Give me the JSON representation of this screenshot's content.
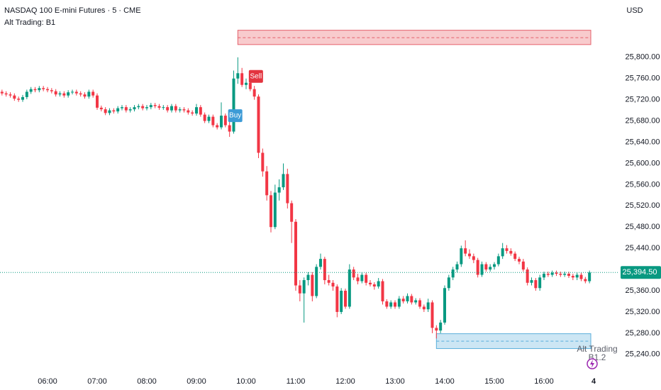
{
  "chart_data": {
    "type": "candlestick",
    "title": "NASDAQ 100 E-mini Futures · 5 · CME",
    "subtitle": "Alt Trading: B1",
    "currency": "USD",
    "up_color": "#089981",
    "down_color": "#f23645",
    "ylim": [
      25213,
      25908
    ],
    "yticks": [
      {
        "value": 25240,
        "label": "25,240.00"
      },
      {
        "value": 25280,
        "label": "25,280.00"
      },
      {
        "value": 25320,
        "label": "25,320.00"
      },
      {
        "value": 25360,
        "label": "25,360.00"
      },
      {
        "value": 25400,
        "label": "25,400.00"
      },
      {
        "value": 25440,
        "label": "25,440.00"
      },
      {
        "value": 25480,
        "label": "25,480.00"
      },
      {
        "value": 25520,
        "label": "25,520.00"
      },
      {
        "value": 25560,
        "label": "25,560.00"
      },
      {
        "value": 25600,
        "label": "25,600.00"
      },
      {
        "value": 25640,
        "label": "25,640.00"
      },
      {
        "value": 25680,
        "label": "25,680.00"
      },
      {
        "value": 25720,
        "label": "25,720.00"
      },
      {
        "value": 25760,
        "label": "25,760.00"
      },
      {
        "value": 25800,
        "label": "25,800.00"
      }
    ],
    "xticks": [
      "06:00",
      "07:00",
      "08:00",
      "09:00",
      "10:00",
      "11:00",
      "12:00",
      "13:00",
      "14:00",
      "15:00",
      "16:00",
      {
        "value": "17:00",
        "label": "4"
      }
    ],
    "last_price": {
      "value": 25394.5,
      "label": "25,394.50"
    },
    "x": [
      "05:05",
      "05:10",
      "05:15",
      "05:20",
      "05:25",
      "05:30",
      "05:35",
      "05:40",
      "05:45",
      "05:50",
      "05:55",
      "06:00",
      "06:05",
      "06:10",
      "06:15",
      "06:20",
      "06:25",
      "06:30",
      "06:35",
      "06:40",
      "06:45",
      "06:50",
      "06:55",
      "07:00",
      "07:05",
      "07:10",
      "07:15",
      "07:20",
      "07:25",
      "07:30",
      "07:35",
      "07:40",
      "07:45",
      "07:50",
      "07:55",
      "08:00",
      "08:05",
      "08:10",
      "08:15",
      "08:20",
      "08:25",
      "08:30",
      "08:35",
      "08:40",
      "08:45",
      "08:50",
      "08:55",
      "09:00",
      "09:05",
      "09:10",
      "09:15",
      "09:20",
      "09:25",
      "09:30",
      "09:35",
      "09:40",
      "09:45",
      "09:50",
      "09:55",
      "10:00",
      "10:05",
      "10:10",
      "10:15",
      "10:20",
      "10:25",
      "10:30",
      "10:35",
      "10:40",
      "10:45",
      "10:50",
      "10:55",
      "11:00",
      "11:05",
      "11:10",
      "11:15",
      "11:20",
      "11:25",
      "11:30",
      "11:35",
      "11:40",
      "11:45",
      "11:50",
      "11:55",
      "12:00",
      "12:05",
      "12:10",
      "12:15",
      "12:20",
      "12:25",
      "12:30",
      "12:35",
      "12:40",
      "12:45",
      "12:50",
      "12:55",
      "13:00",
      "13:05",
      "13:10",
      "13:15",
      "13:20",
      "13:25",
      "13:30",
      "13:35",
      "13:40",
      "13:45",
      "13:50",
      "13:55",
      "14:00",
      "14:05",
      "14:10",
      "14:15",
      "14:20",
      "14:25",
      "14:30",
      "14:35",
      "14:40",
      "14:45",
      "14:50",
      "14:55",
      "15:00",
      "15:05",
      "15:10",
      "15:15",
      "15:20",
      "15:25",
      "15:30",
      "15:35",
      "15:40",
      "15:45",
      "15:50",
      "15:55",
      "16:00",
      "16:05",
      "16:10",
      "16:15",
      "16:20",
      "16:25",
      "16:30",
      "16:35",
      "16:40",
      "16:45",
      "16:50",
      "16:55"
    ],
    "ohlc": [
      [
        25735,
        25739,
        25728,
        25732
      ],
      [
        25732,
        25736,
        25726,
        25730
      ],
      [
        25730,
        25734,
        25724,
        25728
      ],
      [
        25728,
        25732,
        25718,
        25722
      ],
      [
        25722,
        25726,
        25716,
        25720
      ],
      [
        25720,
        25729,
        25716,
        25725
      ],
      [
        25725,
        25739,
        25721,
        25735
      ],
      [
        25735,
        25744,
        25731,
        25740
      ],
      [
        25740,
        25744,
        25734,
        25738
      ],
      [
        25738,
        25746,
        25734,
        25742
      ],
      [
        25742,
        25746,
        25736,
        25740
      ],
      [
        25740,
        25744,
        25734,
        25738
      ],
      [
        25738,
        25742,
        25732,
        25736
      ],
      [
        25736,
        25740,
        25726,
        25730
      ],
      [
        25730,
        25736,
        25726,
        25732
      ],
      [
        25732,
        25736,
        25724,
        25728
      ],
      [
        25728,
        25738,
        25724,
        25734
      ],
      [
        25734,
        25739,
        25730,
        25735
      ],
      [
        25735,
        25739,
        25728,
        25732
      ],
      [
        25732,
        25736,
        25726,
        25730
      ],
      [
        25730,
        25734,
        25722,
        25726
      ],
      [
        25726,
        25739,
        25722,
        25735
      ],
      [
        25735,
        25739,
        25724,
        25728
      ],
      [
        25728,
        25732,
        25701,
        25705
      ],
      [
        25705,
        25709,
        25698,
        25702
      ],
      [
        25702,
        25706,
        25691,
        25695
      ],
      [
        25695,
        25704,
        25691,
        25700
      ],
      [
        25700,
        25704,
        25694,
        25698
      ],
      [
        25698,
        25708,
        25694,
        25704
      ],
      [
        25704,
        25710,
        25700,
        25706
      ],
      [
        25706,
        25710,
        25696,
        25700
      ],
      [
        25700,
        25706,
        25696,
        25702
      ],
      [
        25702,
        25710,
        25698,
        25706
      ],
      [
        25706,
        25712,
        25702,
        25708
      ],
      [
        25708,
        25712,
        25700,
        25704
      ],
      [
        25704,
        25710,
        25700,
        25706
      ],
      [
        25706,
        25714,
        25702,
        25710
      ],
      [
        25710,
        25714,
        25704,
        25708
      ],
      [
        25708,
        25712,
        25701,
        25705
      ],
      [
        25705,
        25710,
        25701,
        25706
      ],
      [
        25706,
        25710,
        25696,
        25700
      ],
      [
        25700,
        25712,
        25696,
        25708
      ],
      [
        25708,
        25712,
        25696,
        25700
      ],
      [
        25700,
        25706,
        25696,
        25702
      ],
      [
        25702,
        25706,
        25696,
        25700
      ],
      [
        25700,
        25704,
        25692,
        25696
      ],
      [
        25696,
        25700,
        25690,
        25694
      ],
      [
        25694,
        25712,
        25690,
        25706
      ],
      [
        25706,
        25710,
        25688,
        25692
      ],
      [
        25692,
        25696,
        25676,
        25680
      ],
      [
        25680,
        25692,
        25676,
        25688
      ],
      [
        25688,
        25692,
        25668,
        25672
      ],
      [
        25672,
        25676,
        25664,
        25668
      ],
      [
        25668,
        25715,
        25664,
        25690
      ],
      [
        25690,
        25694,
        25668,
        25672
      ],
      [
        25672,
        25680,
        25650,
        25660
      ],
      [
        25660,
        25775,
        25656,
        25760
      ],
      [
        25760,
        25800,
        25750,
        25770
      ],
      [
        25770,
        25780,
        25744,
        25748
      ],
      [
        25748,
        25760,
        25740,
        25752
      ],
      [
        25752,
        25758,
        25736,
        25740
      ],
      [
        25740,
        25746,
        25720,
        25726
      ],
      [
        25726,
        25730,
        25610,
        25620
      ],
      [
        25620,
        25628,
        25575,
        25585
      ],
      [
        25585,
        25595,
        25530,
        25540
      ],
      [
        25540,
        25548,
        25470,
        25480
      ],
      [
        25480,
        25560,
        25476,
        25545
      ],
      [
        25545,
        25570,
        25530,
        25555
      ],
      [
        25555,
        25600,
        25550,
        25580
      ],
      [
        25580,
        25590,
        25515,
        25525
      ],
      [
        25525,
        25530,
        25450,
        25490
      ],
      [
        25490,
        25495,
        25360,
        25370
      ],
      [
        25370,
        25380,
        25340,
        25355
      ],
      [
        25355,
        25385,
        25300,
        25380
      ],
      [
        25380,
        25395,
        25370,
        25390
      ],
      [
        25390,
        25395,
        25340,
        25350
      ],
      [
        25350,
        25410,
        25346,
        25405
      ],
      [
        25405,
        25430,
        25400,
        25420
      ],
      [
        25420,
        25424,
        25372,
        25380
      ],
      [
        25380,
        25390,
        25370,
        25375
      ],
      [
        25375,
        25380,
        25360,
        25368
      ],
      [
        25368,
        25372,
        25310,
        25320
      ],
      [
        25320,
        25365,
        25316,
        25360
      ],
      [
        25360,
        25364,
        25326,
        25330
      ],
      [
        25330,
        25410,
        25326,
        25400
      ],
      [
        25400,
        25405,
        25380,
        25385
      ],
      [
        25385,
        25392,
        25372,
        25378
      ],
      [
        25378,
        25395,
        25374,
        25390
      ],
      [
        25390,
        25394,
        25370,
        25375
      ],
      [
        25375,
        25380,
        25368,
        25372
      ],
      [
        25372,
        25376,
        25362,
        25368
      ],
      [
        25368,
        25384,
        25364,
        25378
      ],
      [
        25378,
        25382,
        25334,
        25340
      ],
      [
        25340,
        25344,
        25326,
        25330
      ],
      [
        25330,
        25342,
        25326,
        25338
      ],
      [
        25338,
        25342,
        25326,
        25330
      ],
      [
        25330,
        25350,
        25326,
        25345
      ],
      [
        25345,
        25350,
        25336,
        25340
      ],
      [
        25340,
        25355,
        25336,
        25350
      ],
      [
        25350,
        25354,
        25334,
        25338
      ],
      [
        25338,
        25346,
        25334,
        25342
      ],
      [
        25342,
        25346,
        25326,
        25330
      ],
      [
        25330,
        25334,
        25320,
        25325
      ],
      [
        25325,
        25345,
        25320,
        25338
      ],
      [
        25338,
        25342,
        25280,
        25290
      ],
      [
        25290,
        25295,
        25270,
        25285
      ],
      [
        25285,
        25305,
        25280,
        25300
      ],
      [
        25300,
        25370,
        25296,
        25365
      ],
      [
        25365,
        25390,
        25360,
        25385
      ],
      [
        25385,
        25405,
        25380,
        25400
      ],
      [
        25400,
        25415,
        25395,
        25410
      ],
      [
        25410,
        25445,
        25405,
        25440
      ],
      [
        25440,
        25455,
        25425,
        25430
      ],
      [
        25430,
        25438,
        25420,
        25425
      ],
      [
        25425,
        25430,
        25412,
        25418
      ],
      [
        25418,
        25422,
        25385,
        25390
      ],
      [
        25390,
        25415,
        25386,
        25410
      ],
      [
        25410,
        25414,
        25396,
        25400
      ],
      [
        25400,
        25410,
        25396,
        25405
      ],
      [
        25405,
        25414,
        25400,
        25410
      ],
      [
        25410,
        25430,
        25406,
        25425
      ],
      [
        25425,
        25450,
        25420,
        25440
      ],
      [
        25440,
        25446,
        25430,
        25435
      ],
      [
        25435,
        25440,
        25426,
        25430
      ],
      [
        25430,
        25434,
        25416,
        25420
      ],
      [
        25420,
        25424,
        25410,
        25415
      ],
      [
        25415,
        25420,
        25396,
        25400
      ],
      [
        25400,
        25404,
        25370,
        25375
      ],
      [
        25375,
        25385,
        25370,
        25380
      ],
      [
        25380,
        25384,
        25360,
        25365
      ],
      [
        25365,
        25390,
        25360,
        25385
      ],
      [
        25385,
        25396,
        25380,
        25392
      ],
      [
        25392,
        25396,
        25386,
        25390
      ],
      [
        25390,
        25398,
        25386,
        25394
      ],
      [
        25394,
        25398,
        25388,
        25392
      ],
      [
        25392,
        25396,
        25386,
        25390
      ],
      [
        25390,
        25396,
        25386,
        25392
      ],
      [
        25392,
        25396,
        25384,
        25388
      ],
      [
        25388,
        25392,
        25380,
        25385
      ],
      [
        25385,
        25394,
        25380,
        25390
      ],
      [
        25390,
        25394,
        25378,
        25382
      ],
      [
        25382,
        25386,
        25374,
        25378
      ],
      [
        25378,
        25398,
        25374,
        25394.5
      ]
    ],
    "zones": [
      {
        "start": "09:50",
        "top": 25851,
        "bottom": 25824,
        "mid": 25837,
        "fill": "#f7c5c8",
        "stroke": "#e5606b"
      },
      {
        "start": "13:50",
        "top": 25279,
        "bottom": 25251,
        "mid": 25265,
        "fill": "#c6e3f3",
        "stroke": "#5aaedb"
      }
    ],
    "signals": [
      {
        "label": "Buy",
        "x": "09:40",
        "price": 25690,
        "color": "#3d9bd6"
      },
      {
        "label": "Sell",
        "x": "10:05",
        "price": 25764,
        "color": "#e3343f"
      }
    ],
    "watermark": {
      "line1": "Alt Trading",
      "line2": "B1.2"
    }
  }
}
